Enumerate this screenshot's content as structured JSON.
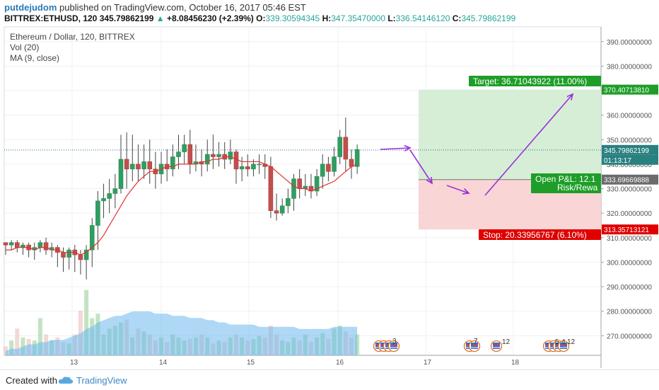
{
  "header": {
    "author": "putdejudom",
    "published": "published on TradingView.com, October 16, 2017 05:46 EST",
    "symbol": "BITTREX:ETHUSD, 120",
    "last": "345.79862199",
    "change_arrow": "▲",
    "change": "+8.08456230 (+2.39%)",
    "o_label": "O:",
    "o_value": "339.30594345",
    "h_label": "H:",
    "h_value": "347.35470000",
    "l_label": "L:",
    "l_value": "336.54146120",
    "c_label": "C:",
    "c_value": "345.79862199"
  },
  "legend": {
    "title": "Ethereum / Dollar, 120, BITTREX",
    "vol": "Vol (20)",
    "ma": "MA (9, close)"
  },
  "price_axis": {
    "ticks": [
      "390.00000000",
      "380.00000000",
      "370.00000000",
      "360.00000000",
      "350.00000000",
      "340.00000000",
      "330.00000000",
      "320.00000000",
      "310.00000000",
      "300.00000000",
      "290.00000000",
      "280.00000000",
      "270.00000000"
    ],
    "target_label": "370.40713810",
    "last_label": "345.79862199",
    "countdown": "01:13:17",
    "entry_label": "333.69669888",
    "stop_label": "313.35713121"
  },
  "time_axis": {
    "ticks": [
      "13",
      "14",
      "15",
      "16",
      "17",
      "18"
    ]
  },
  "position": {
    "target_text": "Target: 36.71043922 (11.00%)",
    "stop_text": "Stop: 20.33956767 (6.10%)",
    "pnl_text": "Open P&L: 12.1",
    "risk_text": "Risk/Rewa"
  },
  "events": [
    "3",
    "7",
    "12",
    "5",
    "4",
    "12"
  ],
  "footer": {
    "created_with": "Created with",
    "brand": "TradingView"
  },
  "colors": {
    "up": "#26a69a",
    "down": "#c0504d",
    "ma": "#e03030",
    "target_bg": "#d2ecd2",
    "stop_bg": "#f8d0d0",
    "arrow": "#9b30d9",
    "label_green": "#1e9e28",
    "label_red": "#e00000"
  },
  "chart_data": {
    "type": "candlestick",
    "y_range": [
      262,
      396
    ],
    "candles": [
      [
        308,
        307,
        308,
        303
      ],
      [
        307,
        308,
        309,
        305
      ],
      [
        308,
        306,
        309,
        304
      ],
      [
        306,
        307,
        308,
        303
      ],
      [
        307,
        305,
        308,
        302
      ],
      [
        305,
        306,
        308,
        301
      ],
      [
        306,
        308,
        309,
        304
      ],
      [
        308,
        305,
        310,
        303
      ],
      [
        305,
        306,
        308,
        302
      ],
      [
        306,
        304,
        307,
        298
      ],
      [
        304,
        302,
        306,
        296
      ],
      [
        302,
        305,
        306,
        297
      ],
      [
        305,
        303,
        307,
        296
      ],
      [
        303,
        301,
        305,
        295
      ],
      [
        301,
        305,
        307,
        293
      ],
      [
        305,
        315,
        318,
        298
      ],
      [
        315,
        325,
        329,
        305
      ],
      [
        325,
        326,
        332,
        318
      ],
      [
        326,
        328,
        334,
        320
      ],
      [
        328,
        330,
        336,
        322
      ],
      [
        330,
        342,
        352,
        328
      ],
      [
        342,
        338,
        353,
        330
      ],
      [
        338,
        340,
        352,
        333
      ],
      [
        340,
        338,
        348,
        333
      ],
      [
        338,
        341,
        348,
        334
      ],
      [
        341,
        338,
        350,
        332
      ],
      [
        338,
        336,
        345,
        330
      ],
      [
        336,
        340,
        345,
        332
      ],
      [
        340,
        338,
        346,
        333
      ],
      [
        338,
        343,
        348,
        335
      ],
      [
        343,
        345,
        352,
        338
      ],
      [
        345,
        348,
        352,
        340
      ],
      [
        348,
        340,
        354,
        336
      ],
      [
        340,
        341,
        348,
        337
      ],
      [
        341,
        340,
        346,
        335
      ],
      [
        340,
        344,
        350,
        337
      ],
      [
        344,
        343,
        352,
        338
      ],
      [
        343,
        344,
        349,
        339
      ],
      [
        344,
        342,
        349,
        338
      ],
      [
        342,
        345,
        350,
        340
      ],
      [
        345,
        338,
        346,
        332
      ],
      [
        338,
        339,
        343,
        333
      ],
      [
        339,
        338,
        344,
        335
      ],
      [
        338,
        340,
        342,
        335
      ],
      [
        340,
        340,
        344,
        336
      ],
      [
        340,
        339,
        344,
        334
      ],
      [
        339,
        321,
        343,
        318
      ],
      [
        321,
        320,
        328,
        317
      ],
      [
        320,
        323,
        326,
        319
      ],
      [
        323,
        326,
        330,
        320
      ],
      [
        326,
        334,
        336,
        321
      ],
      [
        334,
        330,
        338,
        326
      ],
      [
        330,
        331,
        336,
        327
      ],
      [
        331,
        329,
        336,
        326
      ],
      [
        329,
        335,
        338,
        327
      ],
      [
        335,
        340,
        344,
        330
      ],
      [
        340,
        337,
        343,
        333
      ],
      [
        337,
        343,
        347,
        335
      ],
      [
        343,
        351,
        354,
        340
      ],
      [
        351,
        342,
        359,
        337
      ],
      [
        342,
        339,
        346,
        334
      ],
      [
        339,
        346,
        348,
        336
      ]
    ],
    "ma_close": [
      305,
      305,
      306,
      306,
      306,
      305,
      306,
      306,
      305,
      305,
      304,
      304,
      304,
      303,
      304,
      306,
      308,
      311,
      315,
      319,
      323,
      327,
      330,
      333,
      335,
      337,
      337,
      338,
      339,
      339,
      340,
      340,
      340,
      340,
      341,
      341,
      342,
      342,
      343,
      343,
      342,
      341,
      341,
      341,
      341,
      340,
      339,
      337,
      335,
      333,
      331,
      330,
      330,
      329,
      330,
      331,
      332,
      333,
      335,
      337,
      339,
      340
    ],
    "volume": [
      6,
      10,
      18,
      12,
      11,
      10,
      25,
      14,
      10,
      12,
      9,
      8,
      14,
      30,
      44,
      25,
      28,
      14,
      18,
      20,
      22,
      24,
      12,
      18,
      16,
      14,
      10,
      12,
      9,
      14,
      12,
      10,
      11,
      12,
      14,
      12,
      8,
      10,
      9,
      12,
      14,
      12,
      10,
      11,
      13,
      12,
      20,
      14,
      10,
      9,
      12,
      10,
      14,
      9,
      12,
      15,
      11,
      18,
      20,
      16,
      12,
      14
    ],
    "volume_ma": [
      2,
      3,
      3,
      4,
      5,
      5,
      6,
      6,
      7,
      7,
      7,
      8,
      9,
      10,
      12,
      13,
      15,
      16,
      17,
      18,
      18,
      19,
      20,
      20,
      20,
      20,
      19,
      19,
      19,
      18,
      18,
      18,
      17,
      17,
      17,
      16,
      16,
      15,
      15,
      14,
      14,
      14,
      14,
      14,
      13,
      13,
      13,
      13,
      13,
      13,
      13,
      12,
      12,
      12,
      12,
      12,
      12,
      13,
      13,
      13,
      13,
      13
    ],
    "position": {
      "entry": 333.69669888,
      "target": 370.4071381,
      "stop": 313.35713121
    }
  }
}
